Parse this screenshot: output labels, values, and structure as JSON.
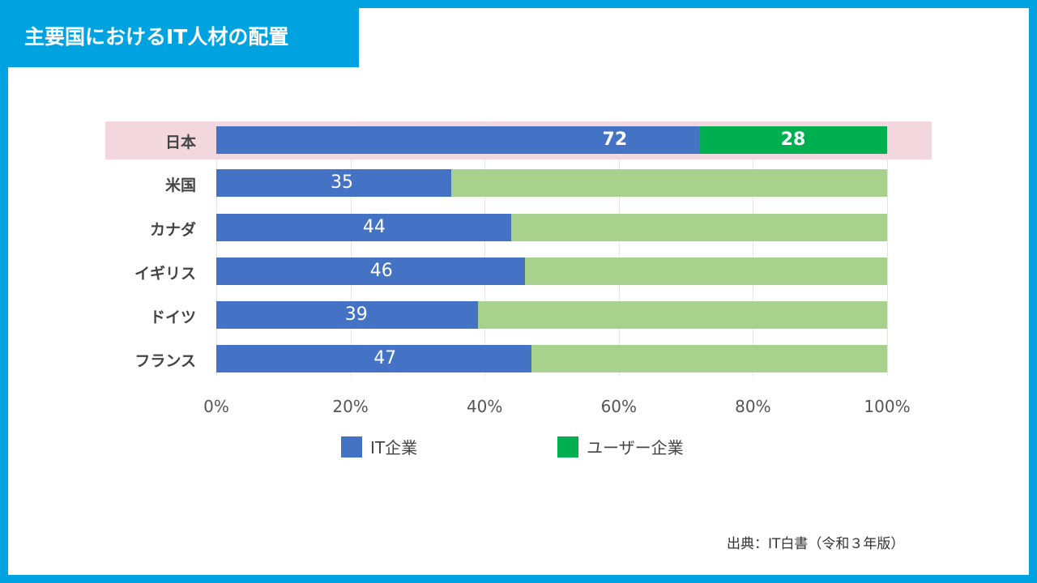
{
  "title": "主要国におけるIT人材の配置",
  "source": "出典：IT白書（令和３年版）",
  "colors": {
    "frame": "#00a3e0",
    "it": "#4472c4",
    "user_highlight": "#00b050",
    "user": "#a9d18e",
    "highlight_band": "#f3d7de"
  },
  "chart_data": {
    "type": "bar",
    "orientation": "horizontal-stacked-100",
    "categories": [
      "日本",
      "米国",
      "カナダ",
      "イギリス",
      "ドイツ",
      "フランス"
    ],
    "series": [
      {
        "name": "IT企業",
        "values": [
          72,
          35,
          44,
          46,
          39,
          47
        ]
      },
      {
        "name": "ユーザー企業",
        "values": [
          28,
          65,
          56,
          54,
          61,
          53
        ]
      }
    ],
    "highlighted_category": "日本",
    "x_ticks": [
      "0%",
      "20%",
      "40%",
      "60%",
      "80%",
      "100%"
    ],
    "xlim": [
      0,
      100
    ],
    "grid": true,
    "legend_position": "bottom",
    "data_labels_shown": {
      "IT企業": "all",
      "ユーザー企業": "日本 only"
    }
  }
}
